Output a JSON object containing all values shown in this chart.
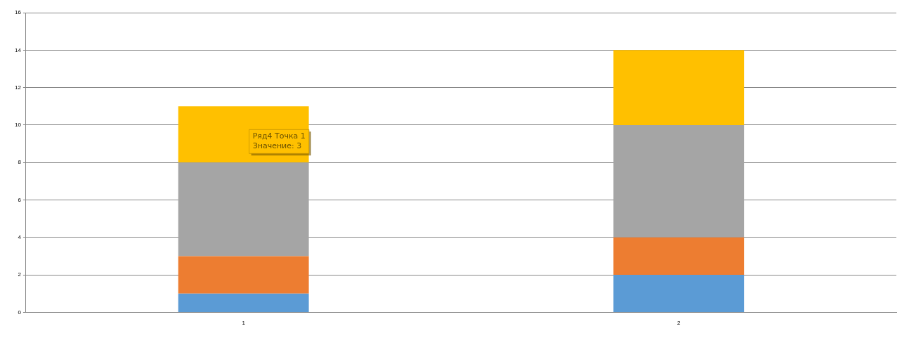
{
  "chart_data": {
    "type": "bar",
    "stacked": true,
    "categories": [
      "1",
      "2"
    ],
    "series": [
      {
        "color": "#5b9bd5",
        "values": [
          1,
          2
        ]
      },
      {
        "color": "#ed7d31",
        "values": [
          2,
          2
        ]
      },
      {
        "color": "#a5a5a5",
        "values": [
          5,
          6
        ]
      },
      {
        "color": "#ffc000",
        "values": [
          3,
          4
        ]
      }
    ],
    "ylim": [
      0,
      16
    ],
    "yticks": [
      0,
      2,
      4,
      6,
      8,
      10,
      12,
      14,
      16
    ],
    "grid": "y",
    "legend": false,
    "annotations": [
      "Ряд4 Точка 1\nЗначение: 3"
    ]
  }
}
